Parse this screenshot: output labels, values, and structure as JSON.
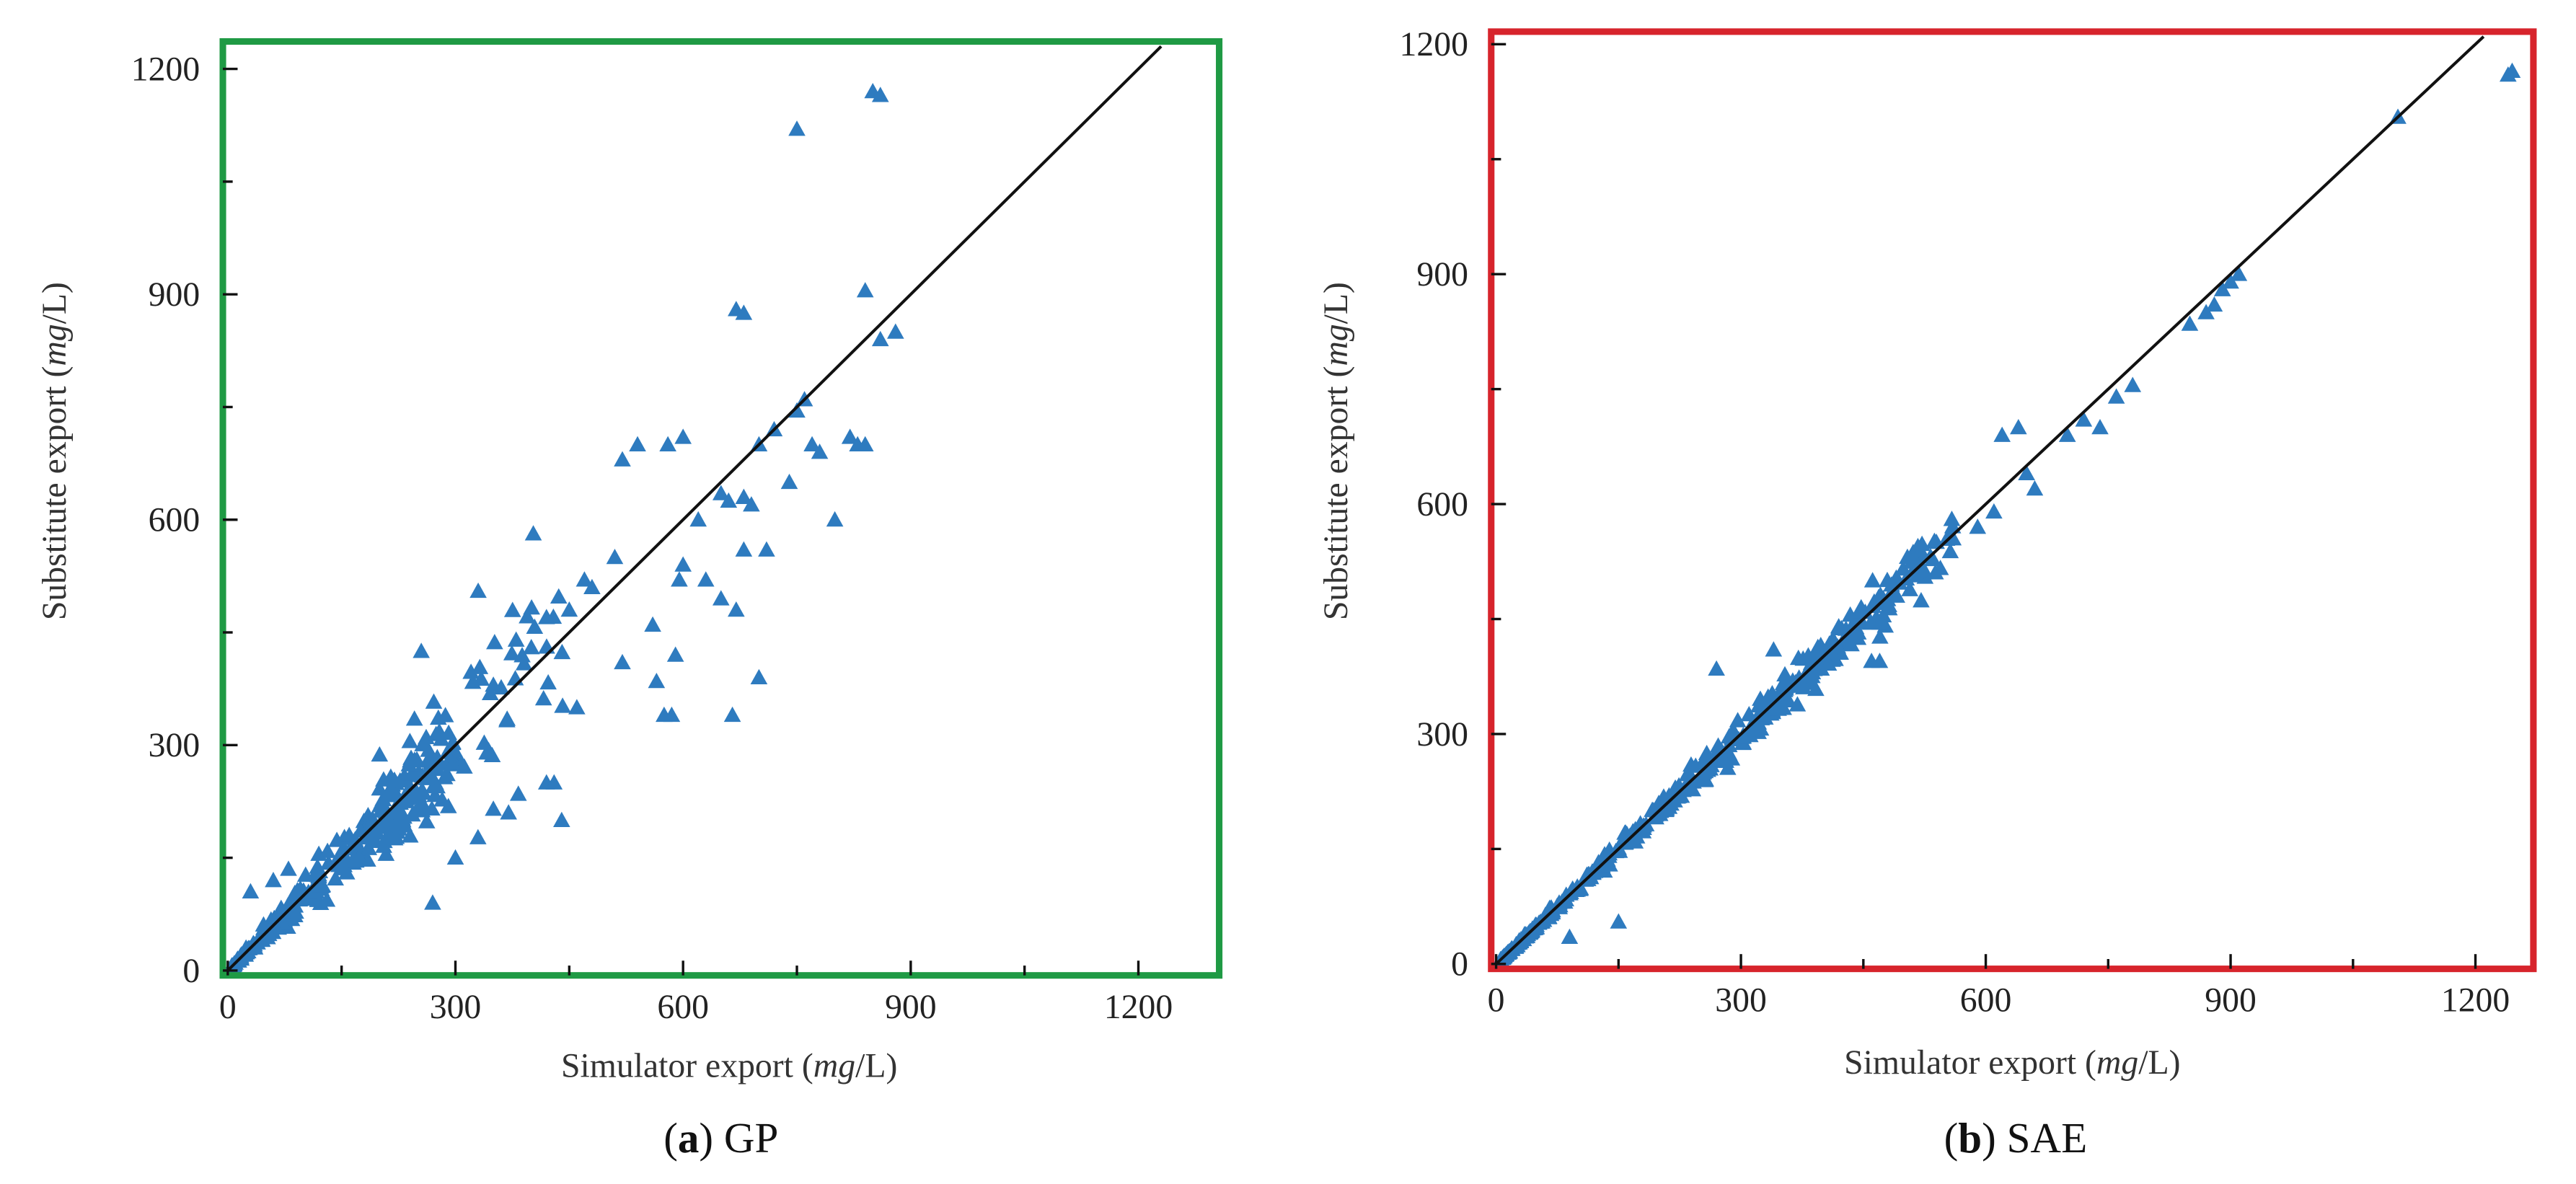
{
  "chart_data": [
    {
      "type": "scatter",
      "caption": {
        "letter": "a",
        "name": "GP"
      },
      "frame_color": "#1f9a44",
      "point_color": "#2e7bbf",
      "xlabel": {
        "prefix": "Simulator export ",
        "unit_open": "(",
        "unit_italic": "mg",
        "unit_close": "/L)"
      },
      "ylabel": {
        "prefix": "Substitute export ",
        "unit_open": "(",
        "unit_italic": "mg",
        "unit_close": "/L)"
      },
      "xlim": [
        0,
        1300
      ],
      "ylim": [
        0,
        1230
      ],
      "xticks": [
        0,
        300,
        600,
        900,
        1200
      ],
      "yticks": [
        0,
        300,
        600,
        900,
        1200
      ],
      "reference_line": "y = x",
      "clusters": [
        {
          "x_range": [
            5,
            300
          ],
          "band": 0.22,
          "count": 260
        },
        {
          "x_range": [
            200,
            450
          ],
          "band": 0.32,
          "count": 70
        }
      ],
      "outliers": [
        [
          30,
          105
        ],
        [
          60,
          120
        ],
        [
          80,
          135
        ],
        [
          120,
          155
        ],
        [
          160,
          180
        ],
        [
          270,
          90
        ],
        [
          255,
          425
        ],
        [
          330,
          505
        ],
        [
          240,
          305
        ],
        [
          300,
          150
        ],
        [
          350,
          215
        ],
        [
          370,
          210
        ],
        [
          420,
          250
        ],
        [
          440,
          200
        ],
        [
          430,
          250
        ],
        [
          460,
          350
        ],
        [
          470,
          520
        ],
        [
          510,
          550
        ],
        [
          520,
          410
        ],
        [
          520,
          680
        ],
        [
          540,
          700
        ],
        [
          560,
          460
        ],
        [
          565,
          385
        ],
        [
          575,
          340
        ],
        [
          585,
          340
        ],
        [
          590,
          420
        ],
        [
          595,
          520
        ],
        [
          600,
          540
        ],
        [
          620,
          600
        ],
        [
          630,
          520
        ],
        [
          650,
          495
        ],
        [
          660,
          625
        ],
        [
          665,
          340
        ],
        [
          670,
          480
        ],
        [
          680,
          630
        ],
        [
          680,
          560
        ],
        [
          690,
          620
        ],
        [
          700,
          390
        ],
        [
          700,
          700
        ],
        [
          710,
          560
        ],
        [
          720,
          720
        ],
        [
          740,
          650
        ],
        [
          750,
          745
        ],
        [
          760,
          760
        ],
        [
          770,
          700
        ],
        [
          780,
          690
        ],
        [
          800,
          600
        ],
        [
          820,
          710
        ],
        [
          830,
          700
        ],
        [
          840,
          700
        ],
        [
          670,
          880
        ],
        [
          680,
          875
        ],
        [
          750,
          1120
        ],
        [
          840,
          905
        ],
        [
          860,
          840
        ],
        [
          880,
          850
        ],
        [
          850,
          1170
        ],
        [
          860,
          1165
        ],
        [
          580,
          700
        ],
        [
          600,
          710
        ],
        [
          650,
          635
        ],
        [
          480,
          510
        ],
        [
          350,
          380
        ],
        [
          380,
          440
        ],
        [
          400,
          430
        ],
        [
          420,
          470
        ],
        [
          450,
          480
        ]
      ]
    },
    {
      "type": "scatter",
      "caption": {
        "letter": "b",
        "name": "SAE"
      },
      "frame_color": "#d7242c",
      "point_color": "#2e7bbf",
      "xlabel": {
        "prefix": "Simulator export ",
        "unit_open": "(",
        "unit_italic": "mg",
        "unit_close": "/L)"
      },
      "ylabel": {
        "prefix": "Substitute export ",
        "unit_open": "(",
        "unit_italic": "mg",
        "unit_close": "/L)"
      },
      "xlim": [
        0,
        1265
      ],
      "ylim": [
        0,
        1210
      ],
      "xticks": [
        0,
        300,
        600,
        900,
        1200
      ],
      "yticks": [
        0,
        300,
        600,
        900,
        1200
      ],
      "reference_line": "y = x",
      "clusters": [
        {
          "x_range": [
            5,
            560
          ],
          "band": 0.07,
          "count": 420
        }
      ],
      "outliers": [
        [
          90,
          35
        ],
        [
          150,
          55
        ],
        [
          270,
          385
        ],
        [
          340,
          410
        ],
        [
          460,
          395
        ],
        [
          470,
          395
        ],
        [
          560,
          555
        ],
        [
          590,
          570
        ],
        [
          610,
          590
        ],
        [
          620,
          690
        ],
        [
          640,
          700
        ],
        [
          650,
          640
        ],
        [
          660,
          620
        ],
        [
          700,
          690
        ],
        [
          720,
          710
        ],
        [
          740,
          700
        ],
        [
          760,
          740
        ],
        [
          780,
          755
        ],
        [
          850,
          835
        ],
        [
          870,
          850
        ],
        [
          880,
          860
        ],
        [
          890,
          880
        ],
        [
          900,
          890
        ],
        [
          910,
          900
        ],
        [
          1105,
          1105
        ],
        [
          1240,
          1160
        ],
        [
          1245,
          1165
        ]
      ]
    }
  ]
}
